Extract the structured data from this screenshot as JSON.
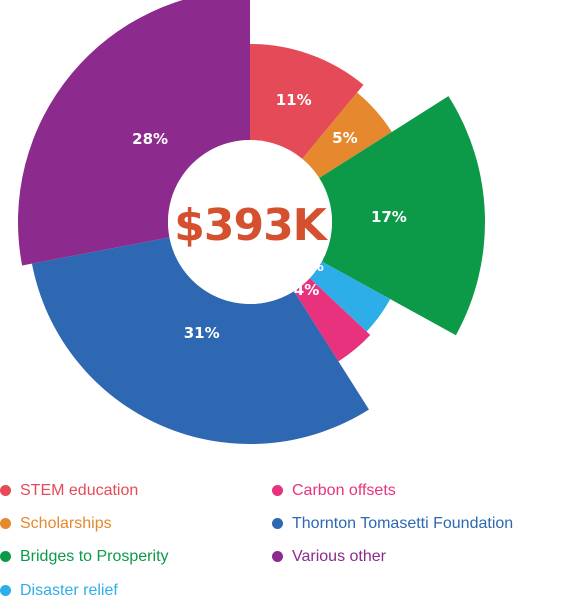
{
  "chart_data": {
    "type": "pie",
    "subtype": "variable-radius donut",
    "center_label": "$393K",
    "slices": [
      {
        "label": "STEM education",
        "value": 11,
        "value_label": "11%",
        "color": "#e44a57"
      },
      {
        "label": "Scholarships",
        "value": 5,
        "value_label": "5%",
        "color": "#e6882e"
      },
      {
        "label": "Bridges to Prosperity",
        "value": 17,
        "value_label": "17%",
        "color": "#0d9a48"
      },
      {
        "label": "Disaster relief",
        "value": 4,
        "value_label": "4%",
        "color": "#2eaee8"
      },
      {
        "label": "Carbon offsets",
        "value": 4,
        "value_label": "4%",
        "color": "#e8327e"
      },
      {
        "label": "Thornton Tomasetti Foundation",
        "value": 31,
        "value_label": "31%",
        "color": "#2e68b2"
      },
      {
        "label": "Various other",
        "value": 28,
        "value_label": "28%",
        "color": "#8c2a8e"
      }
    ],
    "legend_position": "bottom"
  }
}
